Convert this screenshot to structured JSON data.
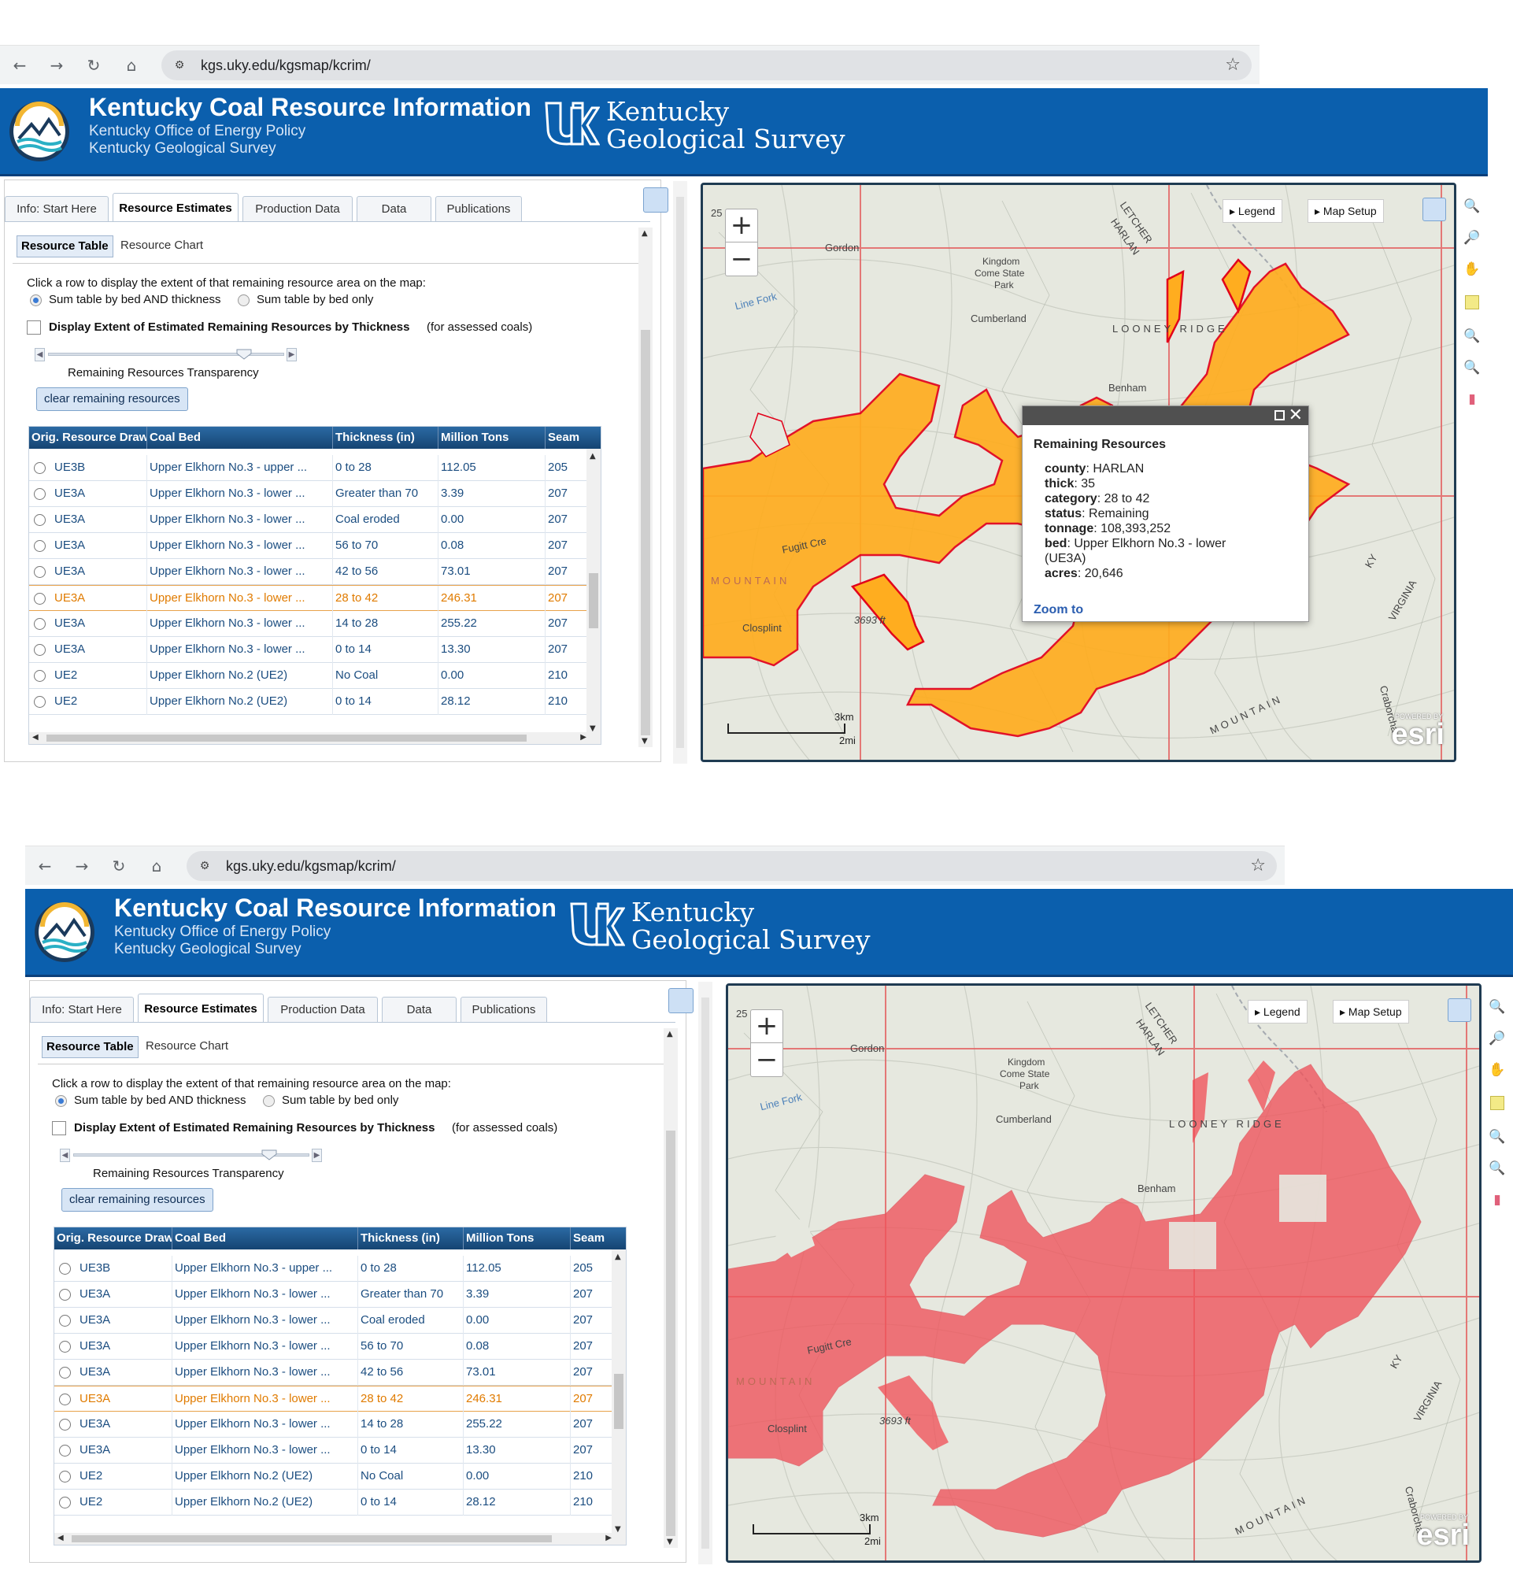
{
  "browser": {
    "url": "kgs.uky.edu/kgsmap/kcrim/",
    "back_icon": "arrow-left-icon",
    "forward_icon": "arrow-right-icon",
    "reload_icon": "reload-icon",
    "home_icon": "home-icon",
    "star_icon": "star-icon"
  },
  "header": {
    "title": "Kentucky Coal Resource Information",
    "subtitle1": "Kentucky Office of Energy Policy",
    "subtitle2": "Kentucky Geological Survey",
    "kgs_line1": "Kentucky",
    "kgs_line2": "Geological Survey",
    "colors": {
      "bar": "#0b5fad",
      "polygon_orange": "#ffad1f",
      "polygon_red": "#f0525a"
    }
  },
  "tabs": [
    "Info: Start Here",
    "Resource Estimates",
    "Production Data",
    "Data",
    "Publications"
  ],
  "active_tab": "Resource Estimates",
  "subtabs": [
    "Resource Table",
    "Resource Chart"
  ],
  "controls": {
    "instruction": "Click a row to display the extent of that remaining resource area on the map:",
    "radio1": "Sum table by bed AND thickness",
    "radio2": "Sum table by bed only",
    "display_extent_bold": "Display Extent of Estimated Remaining Resources by Thickness",
    "display_extent_rest": "(for assessed coals)",
    "transparency_label": "Remaining Resources Transparency",
    "transparency_level": 0.83,
    "clear_button": "clear remaining resources"
  },
  "table": {
    "columns": [
      "Orig. Resource Draw",
      "Coal Bed",
      "Thickness (in)",
      "Million Tons",
      "Seam"
    ],
    "rows": [
      [
        "UE3B",
        "Upper Elkhorn No.3 - upper ...",
        "0 to 28",
        "112.05",
        "205"
      ],
      [
        "UE3A",
        "Upper Elkhorn No.3 - lower ...",
        "Greater than 70",
        "3.39",
        "207"
      ],
      [
        "UE3A",
        "Upper Elkhorn No.3 - lower ...",
        "Coal eroded",
        "0.00",
        "207"
      ],
      [
        "UE3A",
        "Upper Elkhorn No.3 - lower ...",
        "56 to 70",
        "0.08",
        "207"
      ],
      [
        "UE3A",
        "Upper Elkhorn No.3 - lower ...",
        "42 to 56",
        "73.01",
        "207"
      ],
      [
        "UE3A",
        "Upper Elkhorn No.3 - lower ...",
        "28 to 42",
        "246.31",
        "207"
      ],
      [
        "UE3A",
        "Upper Elkhorn No.3 - lower ...",
        "14 to 28",
        "255.22",
        "207"
      ],
      [
        "UE3A",
        "Upper Elkhorn No.3 - lower ...",
        "0 to 14",
        "13.30",
        "207"
      ],
      [
        "UE2",
        "Upper Elkhorn No.2 (UE2)",
        "No Coal",
        "0.00",
        "210"
      ],
      [
        "UE2",
        "Upper Elkhorn No.2 (UE2)",
        "0 to 14",
        "28.12",
        "210"
      ]
    ],
    "selected_row": 5
  },
  "map": {
    "legend_btn": "Legend",
    "setup_btn": "Map Setup",
    "zoom_in": "+",
    "zoom_out": "−",
    "labels": {
      "gordon": "Gordon",
      "kingdom1": "Kingdom",
      "kingdom2": "Come State",
      "kingdom3": "Park",
      "cumberland": "Cumberland",
      "linefork": "Line Fork",
      "benham": "Benham",
      "looney": "LOONEY RIDGE",
      "letcher": "LETCHER",
      "harlan": "HARLAN",
      "closplint": "Closplint",
      "elev": "3693 ft",
      "fugitt": "Fugitt Cre",
      "kentucky": "KY",
      "virginia": "VIRGINIA",
      "mountain": "MOUNTAIN",
      "cranks": "Craborchar",
      "num25": "25",
      "scale_km": "3km",
      "scale_mi": "2mi",
      "esri": "esri",
      "powered": "POWERED BY"
    }
  },
  "popup": {
    "title": "Remaining Resources",
    "fields": [
      {
        "k": "county",
        "v": "HARLAN"
      },
      {
        "k": "thick",
        "v": "35"
      },
      {
        "k": "category",
        "v": "28 to 42"
      },
      {
        "k": "status",
        "v": "Remaining"
      },
      {
        "k": "tonnage",
        "v": "108,393,252"
      },
      {
        "k": "bed",
        "v": "Upper Elkhorn No.3 - lower"
      },
      {
        "k": "",
        "v": "(UE3A)"
      },
      {
        "k": "acres",
        "v": "20,646"
      }
    ],
    "zoom_link": "Zoom to"
  },
  "tools": [
    "zoom-in-icon",
    "zoom-out-icon",
    "pan-hand-icon",
    "measure-icon",
    "zoom-prev-icon",
    "zoom-next-icon",
    "eraser-icon"
  ]
}
